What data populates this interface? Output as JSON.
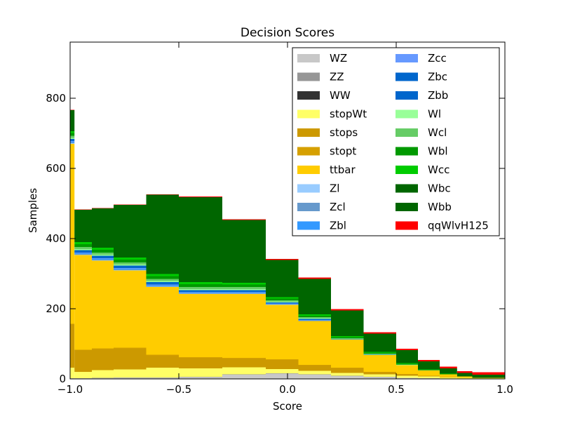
{
  "chart_data": {
    "type": "bar",
    "stacked": true,
    "title": "Decision Scores",
    "xlabel": "Score",
    "ylabel": "Samples",
    "xlim": [
      -1.0,
      1.0
    ],
    "ylim": [
      0,
      960
    ],
    "xticks": [
      "−1.0",
      "−0.5",
      "0.0",
      "0.5",
      "1.0"
    ],
    "xtick_values": [
      -1.0,
      -0.5,
      0.0,
      0.5,
      1.0
    ],
    "yticks": [
      "0",
      "200",
      "400",
      "600",
      "800"
    ],
    "ytick_values": [
      0,
      200,
      400,
      600,
      800
    ],
    "legend_position": "top-right",
    "legend_columns": 2,
    "bin_edges": [
      -1.0,
      -0.98,
      -0.9,
      -0.8,
      -0.65,
      -0.5,
      -0.3,
      -0.1,
      0.05,
      0.2,
      0.35,
      0.5,
      0.6,
      0.7,
      0.78,
      0.85,
      1.0
    ],
    "series": [
      {
        "name": "WZ",
        "color": "#c8c8c8",
        "values": [
          2,
          2,
          2,
          3,
          3,
          5,
          12,
          15,
          12,
          8,
          5,
          3,
          2,
          1,
          1,
          1
        ]
      },
      {
        "name": "ZZ",
        "color": "#969696",
        "values": [
          0,
          0,
          1,
          1,
          1,
          1,
          1,
          1,
          1,
          1,
          1,
          0,
          0,
          0,
          0,
          0
        ]
      },
      {
        "name": "WW",
        "color": "#323232",
        "values": [
          0,
          0,
          0,
          0,
          0,
          0,
          0,
          0,
          0,
          0,
          0,
          0,
          0,
          0,
          0,
          0
        ]
      },
      {
        "name": "stopWt",
        "color": "#ffff66",
        "values": [
          30,
          18,
          22,
          23,
          28,
          24,
          20,
          12,
          10,
          8,
          7,
          6,
          5,
          3,
          2,
          1
        ]
      },
      {
        "name": "stops",
        "color": "#cc9900",
        "values": [
          125,
          63,
          60,
          60,
          35,
          30,
          25,
          26,
          16,
          14,
          6,
          4,
          2,
          1,
          0,
          0
        ]
      },
      {
        "name": "stopt",
        "color": "#d6a000",
        "values": [
          0,
          0,
          2,
          2,
          2,
          2,
          2,
          2,
          1,
          1,
          1,
          1,
          0,
          0,
          0,
          0
        ]
      },
      {
        "name": "ttbar",
        "color": "#ffcc00",
        "values": [
          513,
          270,
          250,
          220,
          193,
          180,
          182,
          155,
          125,
          80,
          48,
          25,
          15,
          8,
          4,
          1
        ]
      },
      {
        "name": "Zl",
        "color": "#99ccff",
        "values": [
          2,
          1,
          1,
          1,
          1,
          1,
          1,
          1,
          0,
          0,
          0,
          0,
          0,
          0,
          0,
          0
        ]
      },
      {
        "name": "Zcl",
        "color": "#6699cc",
        "values": [
          2,
          2,
          2,
          2,
          2,
          2,
          2,
          1,
          1,
          0,
          0,
          0,
          0,
          0,
          0,
          0
        ]
      },
      {
        "name": "Zbl",
        "color": "#3399ff",
        "values": [
          2,
          2,
          2,
          2,
          2,
          2,
          2,
          1,
          1,
          0,
          0,
          0,
          0,
          0,
          0,
          0
        ]
      },
      {
        "name": "Zcc",
        "color": "#6699ff",
        "values": [
          2,
          2,
          2,
          2,
          2,
          1,
          1,
          1,
          1,
          0,
          0,
          0,
          0,
          0,
          0,
          0
        ]
      },
      {
        "name": "Zbc",
        "color": "#0066cc",
        "values": [
          2,
          3,
          3,
          3,
          3,
          2,
          2,
          1,
          1,
          0,
          0,
          0,
          0,
          0,
          0,
          0
        ]
      },
      {
        "name": "Zbb",
        "color": "#0066cc",
        "values": [
          4,
          4,
          4,
          4,
          4,
          3,
          3,
          2,
          2,
          1,
          1,
          0,
          0,
          0,
          0,
          0
        ]
      },
      {
        "name": "Wl",
        "color": "#99ff99",
        "values": [
          3,
          3,
          3,
          3,
          3,
          3,
          3,
          2,
          2,
          1,
          1,
          1,
          0,
          0,
          0,
          0
        ]
      },
      {
        "name": "Wcl",
        "color": "#66cc66",
        "values": [
          6,
          6,
          6,
          6,
          6,
          6,
          6,
          4,
          3,
          2,
          2,
          1,
          1,
          0,
          0,
          0
        ]
      },
      {
        "name": "Wbl",
        "color": "#009900",
        "values": [
          8,
          8,
          8,
          8,
          8,
          8,
          7,
          5,
          4,
          3,
          3,
          2,
          1,
          1,
          0,
          0
        ]
      },
      {
        "name": "Wcc",
        "color": "#00cc00",
        "values": [
          5,
          6,
          6,
          6,
          6,
          6,
          5,
          4,
          4,
          3,
          2,
          2,
          1,
          1,
          0,
          0
        ]
      },
      {
        "name": "Wbc",
        "color": "#006600",
        "values": [
          20,
          30,
          30,
          30,
          30,
          30,
          28,
          20,
          18,
          14,
          10,
          8,
          6,
          3,
          2,
          1
        ]
      },
      {
        "name": "Wbb",
        "color": "#006600",
        "values": [
          40,
          62,
          82,
          120,
          196,
          212,
          151,
          86,
          83,
          59,
          42,
          29,
          17,
          12,
          8,
          8
        ]
      },
      {
        "name": "qqWlvH125",
        "color": "#ff0000",
        "values": [
          1,
          1,
          1,
          1,
          1,
          2,
          2,
          3,
          4,
          4,
          4,
          4,
          4,
          5,
          5,
          7
        ]
      }
    ]
  }
}
